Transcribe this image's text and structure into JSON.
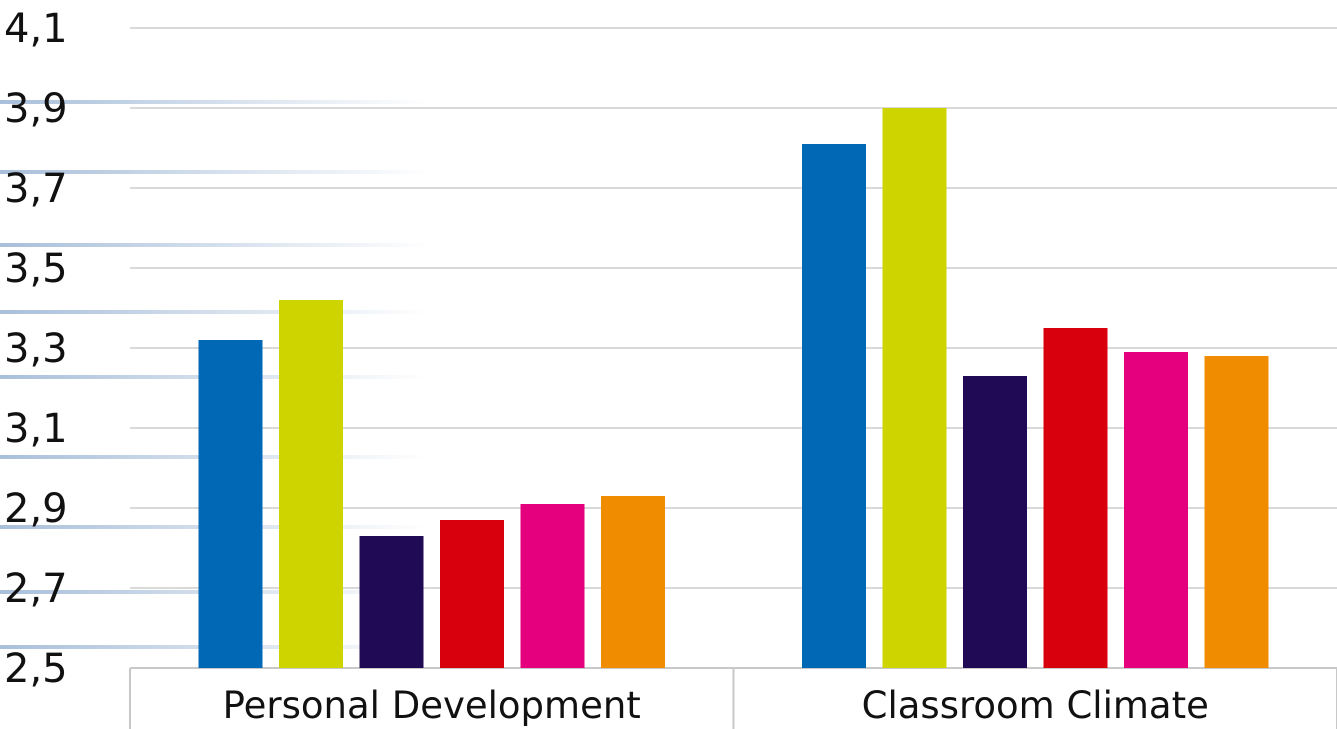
{
  "chart_data": {
    "type": "bar",
    "categories": [
      "Personal Development",
      "Classroom Climate"
    ],
    "series": [
      {
        "values": [
          3.32,
          3.81
        ],
        "color": "#0068b5"
      },
      {
        "values": [
          3.42,
          3.9
        ],
        "color": "#cdd400"
      },
      {
        "values": [
          2.83,
          3.23
        ],
        "color": "#200a56"
      },
      {
        "values": [
          2.87,
          3.35
        ],
        "color": "#d9000d"
      },
      {
        "values": [
          2.91,
          3.29
        ],
        "color": "#e5007e"
      },
      {
        "values": [
          2.93,
          3.28
        ],
        "color": "#f08c00"
      }
    ],
    "ylim": [
      2.5,
      4.1
    ],
    "yticks": [
      "2,5",
      "2,7",
      "2,9",
      "3,1",
      "3,3",
      "3,5",
      "3,7",
      "3,9",
      "4,1"
    ],
    "grid": true,
    "title": "",
    "xlabel": "",
    "ylabel": ""
  }
}
